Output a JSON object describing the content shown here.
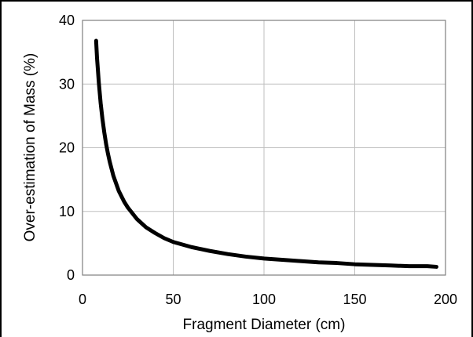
{
  "chart_data": {
    "type": "line",
    "title": "",
    "xlabel": "Fragment Diameter (cm)",
    "ylabel": "Over-estimation of Mass (%)",
    "xlim": [
      0,
      200
    ],
    "ylim": [
      0,
      40
    ],
    "x_ticks": [
      "0",
      "50",
      "100",
      "150",
      "200"
    ],
    "y_ticks": [
      "0",
      "10",
      "20",
      "30",
      "40"
    ],
    "grid": true,
    "legend": "none",
    "series": [
      {
        "color": "#000000",
        "x": [
          7.5,
          8,
          9,
          10,
          11,
          12,
          13,
          14,
          15,
          17,
          20,
          23,
          25,
          30,
          35,
          40,
          45,
          50,
          60,
          70,
          80,
          90,
          100,
          110,
          120,
          130,
          140,
          150,
          160,
          170,
          180,
          190,
          195
        ],
        "y": [
          36.8,
          34.1,
          30.2,
          27.0,
          24.5,
          22.4,
          20.6,
          19.1,
          17.8,
          15.6,
          13.2,
          11.5,
          10.6,
          8.8,
          7.5,
          6.6,
          5.8,
          5.2,
          4.4,
          3.8,
          3.3,
          2.9,
          2.6,
          2.4,
          2.2,
          2.0,
          1.9,
          1.7,
          1.6,
          1.5,
          1.4,
          1.4,
          1.3
        ]
      }
    ]
  }
}
